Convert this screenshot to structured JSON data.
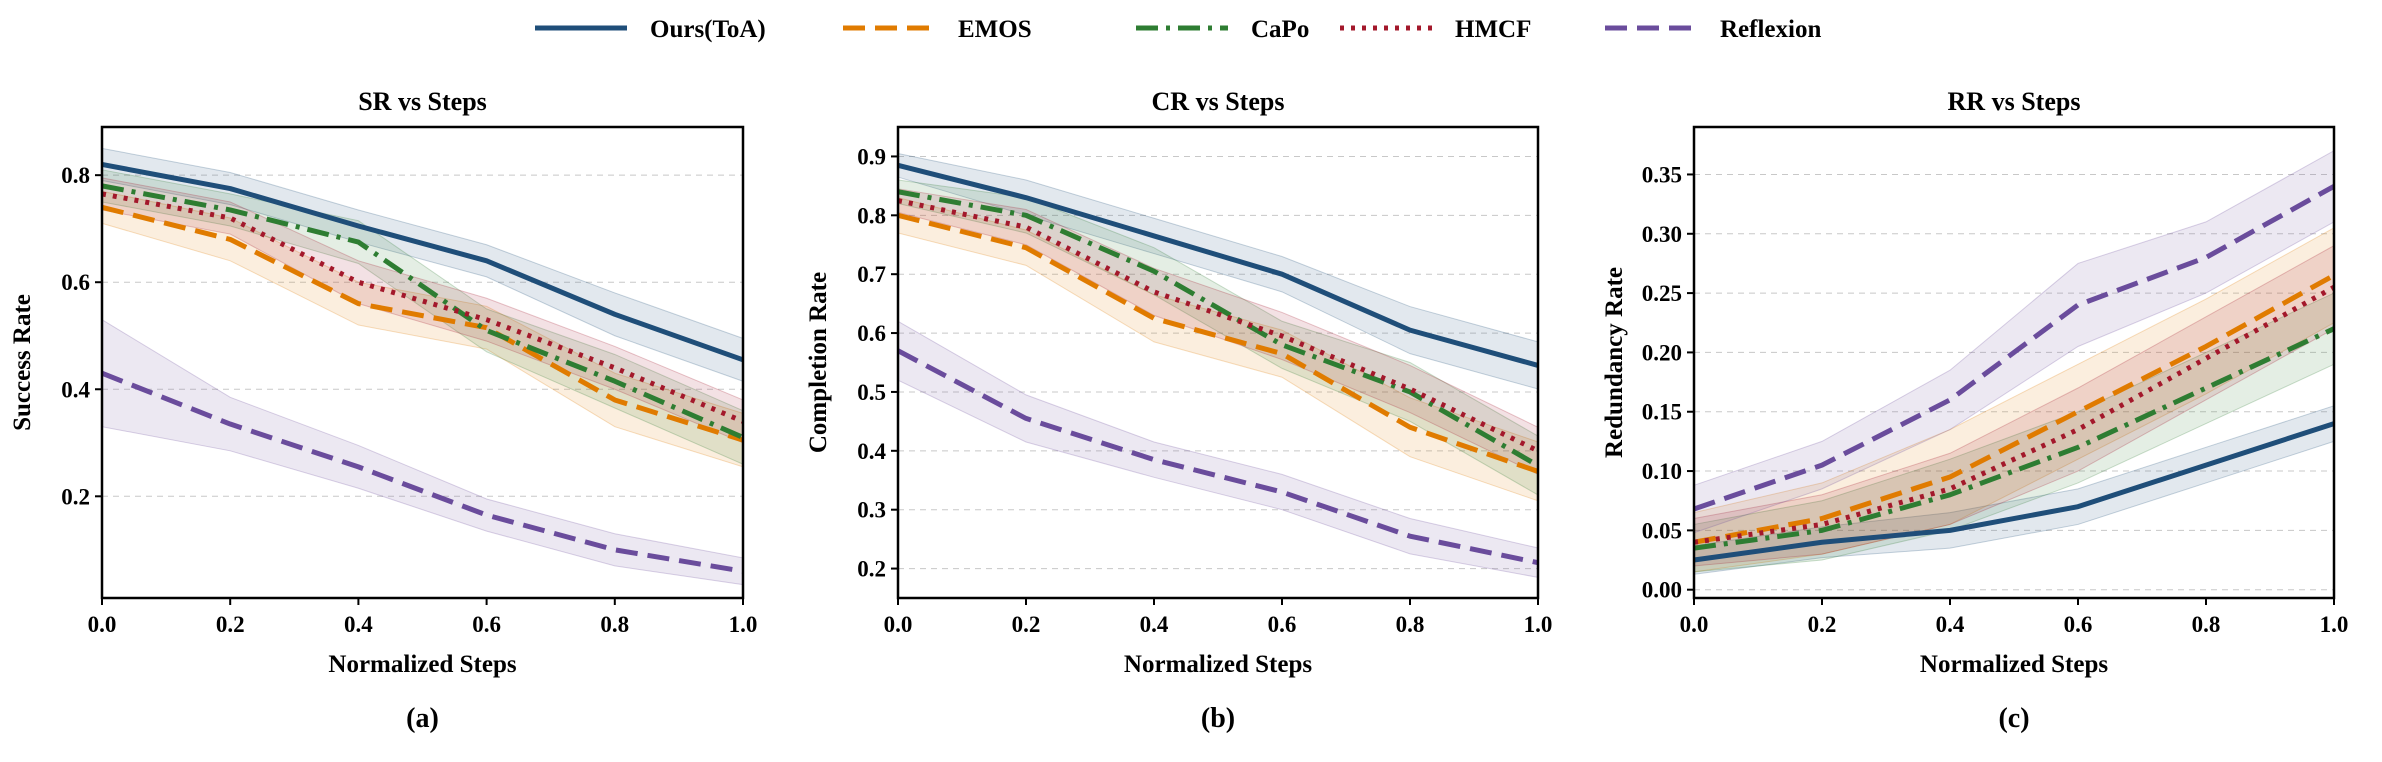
{
  "legend": [
    {
      "name": "Ours(ToA)",
      "color": "#1f4e79",
      "dash": "solid"
    },
    {
      "name": "EMOS",
      "color": "#e07b00",
      "dash": "dashed"
    },
    {
      "name": "CaPo",
      "color": "#2e7d32",
      "dash": "dashdot"
    },
    {
      "name": "HMCF",
      "color": "#a3182b",
      "dash": "dotted"
    },
    {
      "name": "Reflexion",
      "color": "#6a4c9c",
      "dash": "dashed"
    }
  ],
  "chart_data": [
    {
      "type": "line",
      "panel_label": "(a)",
      "title": "SR vs Steps",
      "xlabel": "Normalized Steps",
      "ylabel": "Success Rate",
      "xlim": [
        0.0,
        1.0
      ],
      "ylim": [
        0.01,
        0.89
      ],
      "xticks": [
        "0.0",
        "0.2",
        "0.4",
        "0.6",
        "0.8",
        "1.0"
      ],
      "yticks": [
        "0.2",
        "0.4",
        "0.6",
        "0.8"
      ],
      "grid": "horizontal dashed",
      "x": [
        0.0,
        0.2,
        0.4,
        0.6,
        0.8,
        1.0
      ],
      "series": [
        {
          "name": "Ours(ToA)",
          "values": [
            0.82,
            0.775,
            0.705,
            0.64,
            0.54,
            0.455
          ],
          "band": [
            0.03,
            0.03,
            0.03,
            0.03,
            0.04,
            0.04
          ]
        },
        {
          "name": "EMOS",
          "values": [
            0.74,
            0.68,
            0.56,
            0.515,
            0.38,
            0.305
          ],
          "band": [
            0.03,
            0.04,
            0.04,
            0.04,
            0.05,
            0.05
          ]
        },
        {
          "name": "CaPo",
          "values": [
            0.78,
            0.735,
            0.675,
            0.51,
            0.415,
            0.31
          ],
          "band": [
            0.03,
            0.03,
            0.04,
            0.04,
            0.05,
            0.05
          ]
        },
        {
          "name": "HMCF",
          "values": [
            0.765,
            0.72,
            0.6,
            0.53,
            0.44,
            0.34
          ],
          "band": [
            0.03,
            0.03,
            0.04,
            0.04,
            0.04,
            0.04
          ]
        },
        {
          "name": "Reflexion",
          "values": [
            0.43,
            0.335,
            0.255,
            0.165,
            0.1,
            0.06
          ],
          "band": [
            0.1,
            0.05,
            0.04,
            0.03,
            0.03,
            0.025
          ]
        }
      ]
    },
    {
      "type": "line",
      "panel_label": "(b)",
      "title": "CR vs Steps",
      "xlabel": "Normalized Steps",
      "ylabel": "Completion Rate",
      "xlim": [
        0.0,
        1.0
      ],
      "ylim": [
        0.15,
        0.95
      ],
      "xticks": [
        "0.0",
        "0.2",
        "0.4",
        "0.6",
        "0.8",
        "1.0"
      ],
      "yticks": [
        "0.2",
        "0.3",
        "0.4",
        "0.5",
        "0.6",
        "0.7",
        "0.8",
        "0.9"
      ],
      "grid": "horizontal dashed",
      "x": [
        0.0,
        0.2,
        0.4,
        0.6,
        0.8,
        1.0
      ],
      "series": [
        {
          "name": "Ours(ToA)",
          "values": [
            0.885,
            0.83,
            0.765,
            0.7,
            0.605,
            0.545
          ],
          "band": [
            0.02,
            0.03,
            0.03,
            0.03,
            0.04,
            0.04
          ]
        },
        {
          "name": "EMOS",
          "values": [
            0.8,
            0.745,
            0.625,
            0.565,
            0.44,
            0.365
          ],
          "band": [
            0.03,
            0.03,
            0.04,
            0.04,
            0.05,
            0.05
          ]
        },
        {
          "name": "CaPo",
          "values": [
            0.84,
            0.8,
            0.705,
            0.58,
            0.5,
            0.375
          ],
          "band": [
            0.02,
            0.03,
            0.04,
            0.04,
            0.05,
            0.05
          ]
        },
        {
          "name": "HMCF",
          "values": [
            0.825,
            0.78,
            0.67,
            0.595,
            0.505,
            0.4
          ],
          "band": [
            0.02,
            0.03,
            0.04,
            0.04,
            0.04,
            0.04
          ]
        },
        {
          "name": "Reflexion",
          "values": [
            0.57,
            0.455,
            0.385,
            0.33,
            0.255,
            0.21
          ],
          "band": [
            0.05,
            0.04,
            0.03,
            0.03,
            0.03,
            0.025
          ]
        }
      ]
    },
    {
      "type": "line",
      "panel_label": "(c)",
      "title": "RR vs Steps",
      "xlabel": "Normalized Steps",
      "ylabel": "Redundancy Rate",
      "xlim": [
        0.0,
        1.0
      ],
      "ylim": [
        -0.007,
        0.39
      ],
      "xticks": [
        "0.0",
        "0.2",
        "0.4",
        "0.6",
        "0.8",
        "1.0"
      ],
      "yticks": [
        "0.00",
        "0.05",
        "0.10",
        "0.15",
        "0.20",
        "0.25",
        "0.30",
        "0.35"
      ],
      "grid": "horizontal dashed",
      "x": [
        0.0,
        0.2,
        0.4,
        0.6,
        0.8,
        1.0
      ],
      "series": [
        {
          "name": "Ours(ToA)",
          "values": [
            0.025,
            0.04,
            0.05,
            0.07,
            0.105,
            0.14
          ],
          "band": [
            0.012,
            0.013,
            0.015,
            0.015,
            0.015,
            0.015
          ]
        },
        {
          "name": "EMOS",
          "values": [
            0.04,
            0.06,
            0.095,
            0.15,
            0.205,
            0.265
          ],
          "band": [
            0.025,
            0.03,
            0.04,
            0.04,
            0.04,
            0.04
          ]
        },
        {
          "name": "CaPo",
          "values": [
            0.035,
            0.05,
            0.08,
            0.12,
            0.17,
            0.22
          ],
          "band": [
            0.02,
            0.025,
            0.03,
            0.03,
            0.03,
            0.03
          ]
        },
        {
          "name": "HMCF",
          "values": [
            0.04,
            0.055,
            0.085,
            0.135,
            0.195,
            0.255
          ],
          "band": [
            0.02,
            0.025,
            0.03,
            0.035,
            0.035,
            0.035
          ]
        },
        {
          "name": "Reflexion",
          "values": [
            0.068,
            0.105,
            0.16,
            0.24,
            0.28,
            0.34
          ],
          "band": [
            0.02,
            0.02,
            0.025,
            0.035,
            0.03,
            0.03
          ]
        }
      ]
    }
  ]
}
